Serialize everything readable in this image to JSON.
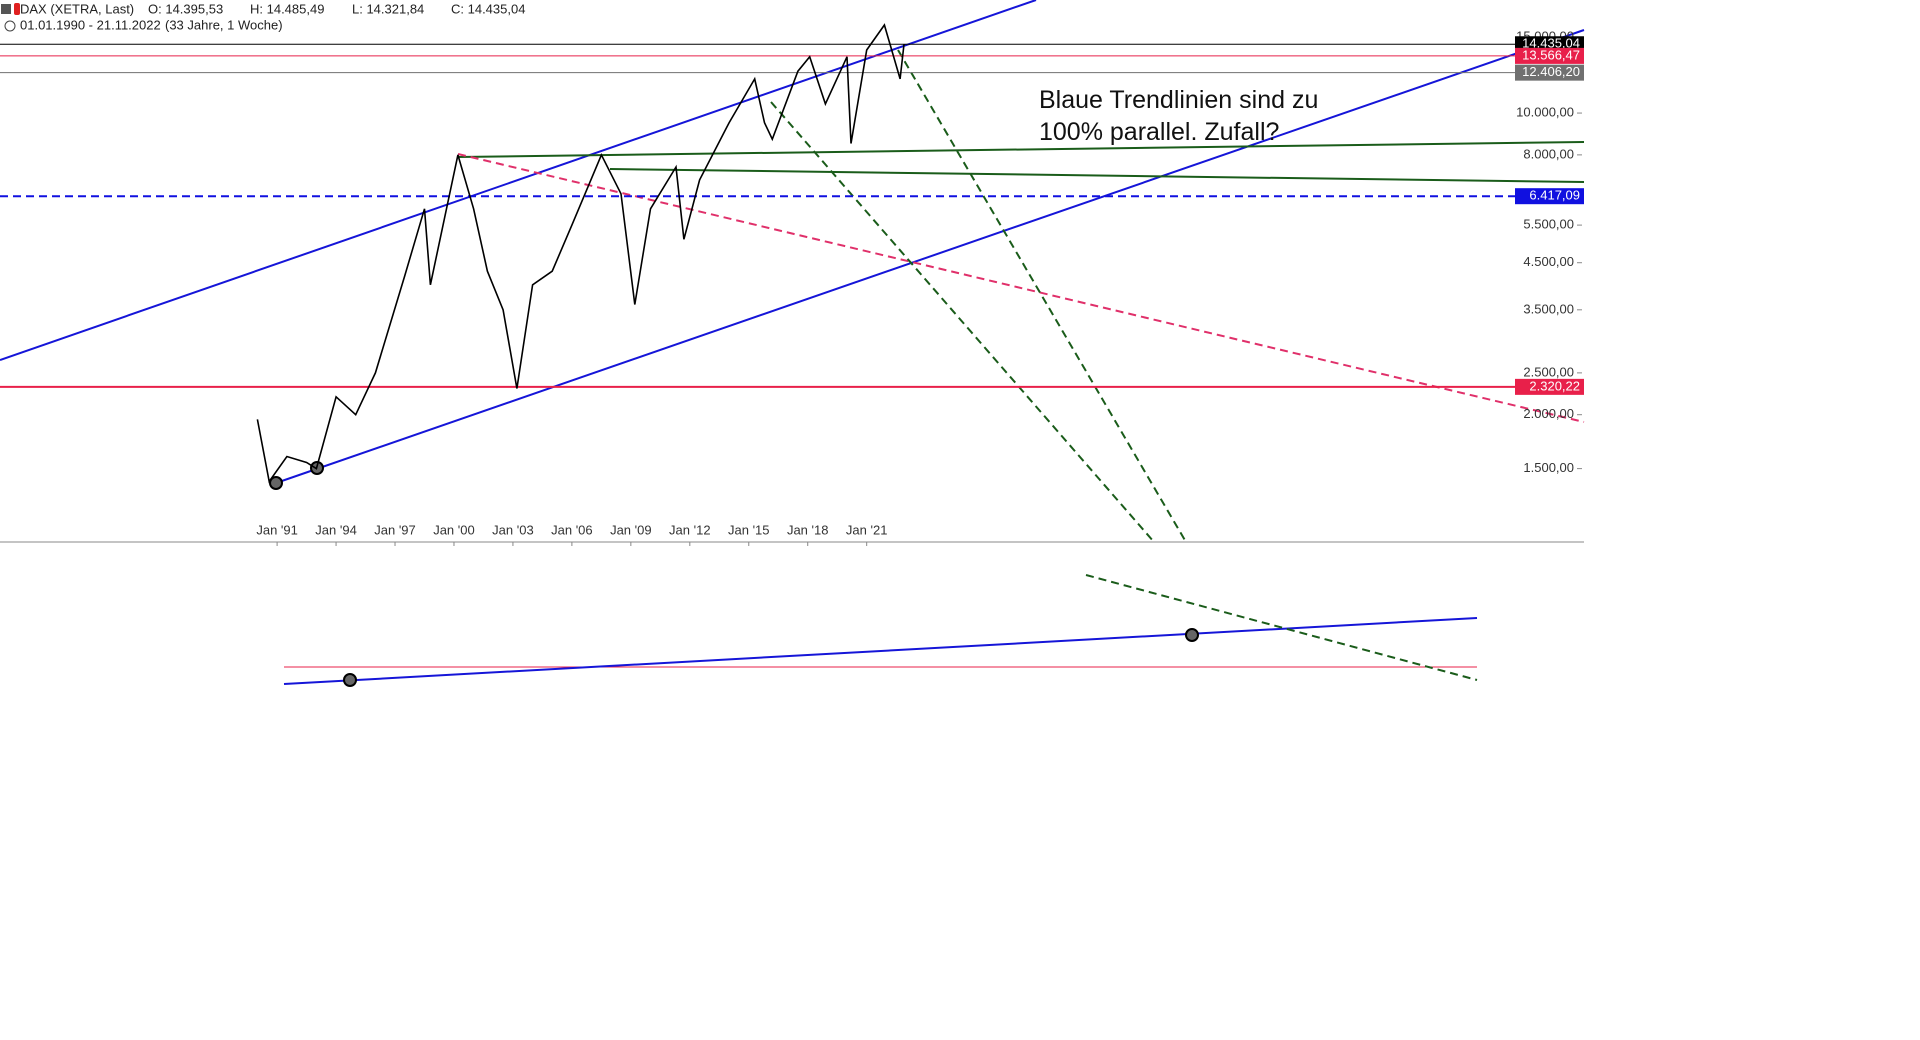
{
  "header": {
    "instrument": "DAX (XETRA, Last)",
    "open": "O: 14.395,53",
    "high": "H: 14.485,49",
    "low": "L: 14.321,84",
    "close": "C: 14.435,04",
    "range": "01.01.1990 - 21.11.2022",
    "span": "(33 Jahre, 1 Woche)"
  },
  "chart_data": {
    "type": "line",
    "log_scale": true,
    "annotation": [
      "Blaue Trendlinien sind zu",
      "100% parallel. Zufall?"
    ],
    "xlim": [
      1976.9,
      2057.5
    ],
    "xticks": [
      {
        "value": 1991,
        "label": "Jan '91"
      },
      {
        "value": 1994,
        "label": "Jan '94"
      },
      {
        "value": 1997,
        "label": "Jan '97"
      },
      {
        "value": 2000,
        "label": "Jan '00"
      },
      {
        "value": 2003,
        "label": "Jan '03"
      },
      {
        "value": 2006,
        "label": "Jan '06"
      },
      {
        "value": 2009,
        "label": "Jan '09"
      },
      {
        "value": 2012,
        "label": "Jan '12"
      },
      {
        "value": 2015,
        "label": "Jan '15"
      },
      {
        "value": 2018,
        "label": "Jan '18"
      },
      {
        "value": 2021,
        "label": "Jan '21"
      }
    ],
    "ylim": [
      1014,
      18280
    ],
    "yticks": [
      {
        "value": 1500,
        "label": "1.500,00"
      },
      {
        "value": 2000,
        "label": "2.000,00"
      },
      {
        "value": 2500,
        "label": "2.500,00"
      },
      {
        "value": 3500,
        "label": "3.500,00"
      },
      {
        "value": 4500,
        "label": "4.500,00"
      },
      {
        "value": 5500,
        "label": "5.500,00"
      },
      {
        "value": 8000,
        "label": "8.000,00"
      },
      {
        "value": 10000,
        "label": "10.000,00"
      },
      {
        "value": 15000,
        "label": "15.000,00"
      }
    ],
    "series": [
      {
        "name": "DAX",
        "color": "#000000",
        "x": [
          1990.0,
          1990.6,
          1991.5,
          1992.5,
          1993.0,
          1994.0,
          1995.0,
          1996.0,
          1997.5,
          1998.5,
          1998.8,
          2000.2,
          2001.0,
          2001.7,
          2002.5,
          2003.2,
          2004.0,
          2005.0,
          2006.0,
          2007.5,
          2008.5,
          2009.2,
          2010.0,
          2011.3,
          2011.7,
          2012.5,
          2014.0,
          2015.3,
          2015.8,
          2016.2,
          2017.5,
          2018.1,
          2018.9,
          2020.0,
          2020.2,
          2021.0,
          2021.9,
          2022.7,
          2022.9
        ],
        "values": [
          1950,
          1400,
          1600,
          1550,
          1500,
          2200,
          2000,
          2500,
          4200,
          6000,
          4000,
          8000,
          6000,
          4300,
          3500,
          2300,
          4000,
          4300,
          5500,
          8000,
          6500,
          3600,
          6000,
          7500,
          5100,
          7000,
          9500,
          12000,
          9500,
          8700,
          12500,
          13500,
          10500,
          13500,
          8500,
          14000,
          16000,
          12000,
          14435
        ]
      }
    ],
    "levels": [
      {
        "value": 14435.04,
        "label": "14.435,04",
        "color": "#000000"
      },
      {
        "value": 13566.47,
        "label": "13.566,47",
        "color": "#e8204a"
      },
      {
        "value": 12406.2,
        "label": "12.406,20",
        "color": "#707070"
      },
      {
        "value": 6417.09,
        "label": "6.417,09",
        "color": "#1010e0"
      },
      {
        "value": 2320.22,
        "label": "2.320,22",
        "color": "#e8204a"
      }
    ]
  }
}
